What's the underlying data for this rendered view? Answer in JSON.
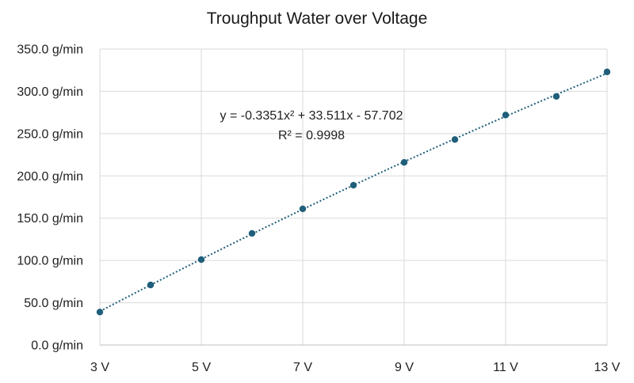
{
  "chart_data": {
    "type": "scatter",
    "title": "Troughput Water over Voltage",
    "xlabel": "",
    "ylabel": "",
    "x_unit": "V",
    "y_unit": "g/min",
    "xlim": [
      3,
      13
    ],
    "ylim": [
      0,
      350
    ],
    "x_ticks": [
      3,
      5,
      7,
      9,
      11,
      13
    ],
    "x_tick_labels": [
      "3 V",
      "5 V",
      "7 V",
      "9 V",
      "11 V",
      "13 V"
    ],
    "y_ticks": [
      0,
      50,
      100,
      150,
      200,
      250,
      300,
      350
    ],
    "y_tick_labels": [
      "0.0 g/min",
      "50.0 g/min",
      "100.0 g/min",
      "150.0 g/min",
      "200.0 g/min",
      "250.0 g/min",
      "300.0 g/min",
      "350.0 g/min"
    ],
    "grid": true,
    "series": [
      {
        "marker_color": "#1f5f7a",
        "x": [
          3,
          4,
          5,
          6,
          7,
          8,
          9,
          10,
          11,
          12,
          13
        ],
        "y": [
          39,
          71,
          101,
          132,
          161,
          189,
          216,
          243,
          272,
          294,
          323
        ]
      }
    ],
    "trendline": {
      "kind": "polynomial",
      "coefficients": [
        -0.3351,
        33.511,
        -57.702
      ],
      "style": "dotted",
      "color": "#1f5f7a",
      "equation_text": "y = -0.3351x² + 33.511x - 57.702",
      "r2_text": "R² = 0.9998"
    }
  }
}
